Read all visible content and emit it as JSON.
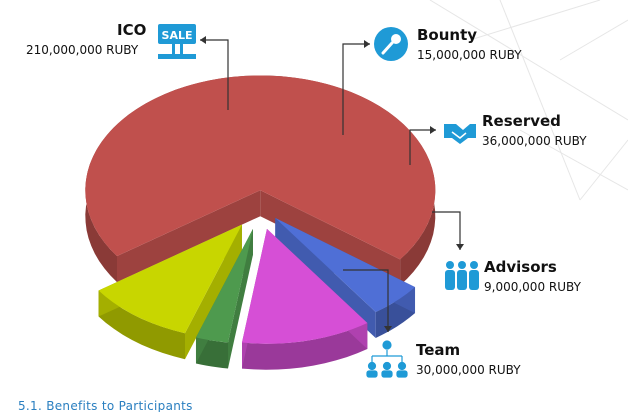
{
  "chart_data": {
    "type": "pie",
    "style": "3d-exploded",
    "unit": "RUBY",
    "slices": [
      {
        "name": "ICO",
        "value": 210000000,
        "value_label": "210,000,000 RUBY",
        "color": "#c0504d",
        "icon": "sale-sign-icon"
      },
      {
        "name": "Bounty",
        "value": 15000000,
        "value_label": "15,000,000 RUBY",
        "color": "#4f6fd6",
        "icon": "microphone-icon"
      },
      {
        "name": "Reserved",
        "value": 36000000,
        "value_label": "36,000,000 RUBY",
        "color": "#d64fd6",
        "icon": "handshake-icon"
      },
      {
        "name": "Advisors",
        "value": 9000000,
        "value_label": "9,000,000 RUBY",
        "color": "#4e9a4e",
        "icon": "people-group-icon"
      },
      {
        "name": "Team",
        "value": 30000000,
        "value_label": "30,000,000 RUBY",
        "color": "#c8d600",
        "icon": "team-hierarchy-icon"
      }
    ]
  },
  "footer": {
    "text": "5.1. Benefits to Participants"
  }
}
